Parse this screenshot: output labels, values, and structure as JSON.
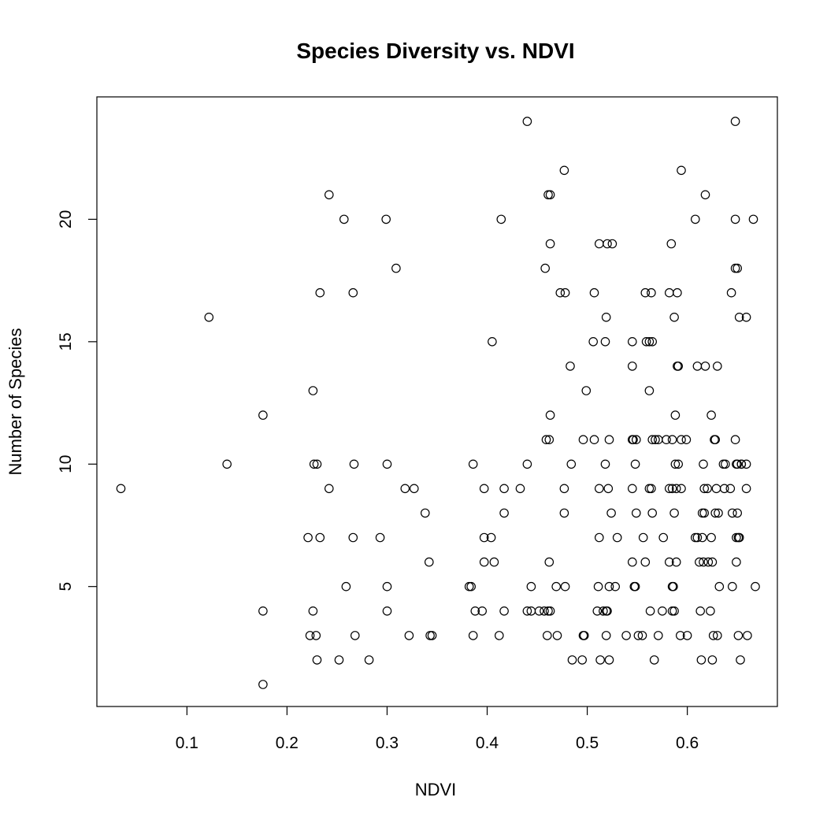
{
  "chart_data": {
    "type": "scatter",
    "title": "Species Diversity vs. NDVI",
    "xlabel": "NDVI",
    "ylabel": "Number of Species",
    "xlim": [
      0.01,
      0.69
    ],
    "ylim": [
      0.1,
      25.0
    ],
    "xticks": [
      0.1,
      0.2,
      0.3,
      0.4,
      0.5,
      0.6
    ],
    "yticks": [
      5,
      10,
      15,
      20
    ],
    "xtick_labels": [
      "0.1",
      "0.2",
      "0.3",
      "0.4",
      "0.5",
      "0.6"
    ],
    "ytick_labels": [
      "5",
      "10",
      "15",
      "20"
    ],
    "grid": false,
    "legend": "none",
    "marker": "open-circle",
    "color": "#000000",
    "points": [
      [
        0.034,
        9
      ],
      [
        0.122,
        16
      ],
      [
        0.14,
        10
      ],
      [
        0.176,
        12
      ],
      [
        0.176,
        4
      ],
      [
        0.176,
        1
      ],
      [
        0.221,
        7
      ],
      [
        0.223,
        3
      ],
      [
        0.226,
        13
      ],
      [
        0.226,
        4
      ],
      [
        0.227,
        10
      ],
      [
        0.229,
        3
      ],
      [
        0.23,
        10
      ],
      [
        0.23,
        2
      ],
      [
        0.233,
        17
      ],
      [
        0.233,
        7
      ],
      [
        0.242,
        21
      ],
      [
        0.242,
        9
      ],
      [
        0.252,
        2
      ],
      [
        0.257,
        20
      ],
      [
        0.259,
        5
      ],
      [
        0.266,
        17
      ],
      [
        0.267,
        10
      ],
      [
        0.266,
        7
      ],
      [
        0.268,
        3
      ],
      [
        0.282,
        2
      ],
      [
        0.293,
        7
      ],
      [
        0.299,
        20
      ],
      [
        0.3,
        10
      ],
      [
        0.3,
        5
      ],
      [
        0.3,
        4
      ],
      [
        0.309,
        18
      ],
      [
        0.318,
        9
      ],
      [
        0.322,
        3
      ],
      [
        0.327,
        9
      ],
      [
        0.338,
        8
      ],
      [
        0.342,
        6
      ],
      [
        0.343,
        3
      ],
      [
        0.345,
        3
      ],
      [
        0.382,
        5
      ],
      [
        0.384,
        5
      ],
      [
        0.386,
        10
      ],
      [
        0.386,
        3
      ],
      [
        0.388,
        4
      ],
      [
        0.395,
        4
      ],
      [
        0.397,
        9
      ],
      [
        0.397,
        7
      ],
      [
        0.397,
        6
      ],
      [
        0.404,
        7
      ],
      [
        0.405,
        15
      ],
      [
        0.407,
        6
      ],
      [
        0.412,
        3
      ],
      [
        0.414,
        20
      ],
      [
        0.417,
        9
      ],
      [
        0.417,
        8
      ],
      [
        0.417,
        4
      ],
      [
        0.433,
        9
      ],
      [
        0.44,
        24
      ],
      [
        0.44,
        10
      ],
      [
        0.44,
        4
      ],
      [
        0.444,
        4
      ],
      [
        0.444,
        5
      ],
      [
        0.452,
        4
      ],
      [
        0.457,
        4
      ],
      [
        0.458,
        18
      ],
      [
        0.459,
        11
      ],
      [
        0.46,
        3
      ],
      [
        0.461,
        21
      ],
      [
        0.461,
        4
      ],
      [
        0.462,
        11
      ],
      [
        0.462,
        6
      ],
      [
        0.463,
        21
      ],
      [
        0.463,
        19
      ],
      [
        0.463,
        12
      ],
      [
        0.463,
        4
      ],
      [
        0.469,
        5
      ],
      [
        0.47,
        3
      ],
      [
        0.473,
        17
      ],
      [
        0.477,
        22
      ],
      [
        0.477,
        9
      ],
      [
        0.477,
        8
      ],
      [
        0.478,
        17
      ],
      [
        0.478,
        5
      ],
      [
        0.483,
        14
      ],
      [
        0.484,
        10
      ],
      [
        0.485,
        2
      ],
      [
        0.495,
        2
      ],
      [
        0.496,
        11
      ],
      [
        0.496,
        3
      ],
      [
        0.497,
        3
      ],
      [
        0.499,
        13
      ],
      [
        0.506,
        15
      ],
      [
        0.507,
        11
      ],
      [
        0.507,
        17
      ],
      [
        0.51,
        4
      ],
      [
        0.511,
        5
      ],
      [
        0.512,
        19
      ],
      [
        0.512,
        9
      ],
      [
        0.512,
        7
      ],
      [
        0.513,
        2
      ],
      [
        0.516,
        4
      ],
      [
        0.518,
        15
      ],
      [
        0.518,
        10
      ],
      [
        0.519,
        16
      ],
      [
        0.519,
        4
      ],
      [
        0.519,
        3
      ],
      [
        0.52,
        19
      ],
      [
        0.52,
        4
      ],
      [
        0.521,
        9
      ],
      [
        0.522,
        11
      ],
      [
        0.522,
        5
      ],
      [
        0.522,
        2
      ],
      [
        0.524,
        8
      ],
      [
        0.525,
        19
      ],
      [
        0.528,
        5
      ],
      [
        0.53,
        7
      ],
      [
        0.539,
        3
      ],
      [
        0.545,
        15
      ],
      [
        0.545,
        14
      ],
      [
        0.545,
        11
      ],
      [
        0.545,
        9
      ],
      [
        0.545,
        6
      ],
      [
        0.546,
        11
      ],
      [
        0.547,
        5
      ],
      [
        0.548,
        10
      ],
      [
        0.548,
        5
      ],
      [
        0.549,
        11
      ],
      [
        0.549,
        8
      ],
      [
        0.551,
        3
      ],
      [
        0.555,
        3
      ],
      [
        0.556,
        7
      ],
      [
        0.558,
        17
      ],
      [
        0.558,
        6
      ],
      [
        0.559,
        15
      ],
      [
        0.562,
        15
      ],
      [
        0.562,
        13
      ],
      [
        0.562,
        9
      ],
      [
        0.563,
        4
      ],
      [
        0.564,
        17
      ],
      [
        0.564,
        9
      ],
      [
        0.565,
        15
      ],
      [
        0.565,
        8
      ],
      [
        0.565,
        11
      ],
      [
        0.567,
        2
      ],
      [
        0.568,
        11
      ],
      [
        0.571,
        11
      ],
      [
        0.571,
        3
      ],
      [
        0.575,
        4
      ],
      [
        0.576,
        7
      ],
      [
        0.579,
        11
      ],
      [
        0.582,
        17
      ],
      [
        0.582,
        9
      ],
      [
        0.582,
        6
      ],
      [
        0.584,
        19
      ],
      [
        0.585,
        11
      ],
      [
        0.585,
        5
      ],
      [
        0.585,
        4
      ],
      [
        0.585,
        9
      ],
      [
        0.586,
        5
      ],
      [
        0.587,
        16
      ],
      [
        0.587,
        8
      ],
      [
        0.587,
        4
      ],
      [
        0.588,
        12
      ],
      [
        0.588,
        10
      ],
      [
        0.589,
        9
      ],
      [
        0.589,
        6
      ],
      [
        0.59,
        17
      ],
      [
        0.59,
        14
      ],
      [
        0.591,
        14
      ],
      [
        0.591,
        10
      ],
      [
        0.593,
        3
      ],
      [
        0.594,
        22
      ],
      [
        0.594,
        11
      ],
      [
        0.594,
        9
      ],
      [
        0.599,
        11
      ],
      [
        0.6,
        3
      ],
      [
        0.608,
        20
      ],
      [
        0.608,
        7
      ],
      [
        0.61,
        7
      ],
      [
        0.61,
        14
      ],
      [
        0.612,
        6
      ],
      [
        0.613,
        4
      ],
      [
        0.614,
        2
      ],
      [
        0.615,
        8
      ],
      [
        0.615,
        7
      ],
      [
        0.616,
        10
      ],
      [
        0.616,
        6
      ],
      [
        0.617,
        9
      ],
      [
        0.617,
        8
      ],
      [
        0.618,
        14
      ],
      [
        0.618,
        21
      ],
      [
        0.62,
        9
      ],
      [
        0.621,
        6
      ],
      [
        0.623,
        4
      ],
      [
        0.624,
        12
      ],
      [
        0.624,
        7
      ],
      [
        0.625,
        6
      ],
      [
        0.625,
        2
      ],
      [
        0.626,
        3
      ],
      [
        0.627,
        11
      ],
      [
        0.628,
        11
      ],
      [
        0.628,
        8
      ],
      [
        0.629,
        9
      ],
      [
        0.63,
        14
      ],
      [
        0.63,
        3
      ],
      [
        0.631,
        8
      ],
      [
        0.632,
        5
      ],
      [
        0.636,
        10
      ],
      [
        0.637,
        9
      ],
      [
        0.638,
        10
      ],
      [
        0.643,
        9
      ],
      [
        0.644,
        17
      ],
      [
        0.645,
        8
      ],
      [
        0.645,
        5
      ],
      [
        0.648,
        24
      ],
      [
        0.648,
        11
      ],
      [
        0.648,
        20
      ],
      [
        0.648,
        18
      ],
      [
        0.649,
        6
      ],
      [
        0.649,
        7
      ],
      [
        0.649,
        10
      ],
      [
        0.65,
        18
      ],
      [
        0.65,
        10
      ],
      [
        0.65,
        8
      ],
      [
        0.651,
        3
      ],
      [
        0.651,
        7
      ],
      [
        0.652,
        16
      ],
      [
        0.652,
        7
      ],
      [
        0.653,
        2
      ],
      [
        0.654,
        10
      ],
      [
        0.654,
        10
      ],
      [
        0.659,
        10
      ],
      [
        0.659,
        9
      ],
      [
        0.659,
        16
      ],
      [
        0.66,
        3
      ],
      [
        0.666,
        20
      ],
      [
        0.668,
        5
      ]
    ]
  }
}
